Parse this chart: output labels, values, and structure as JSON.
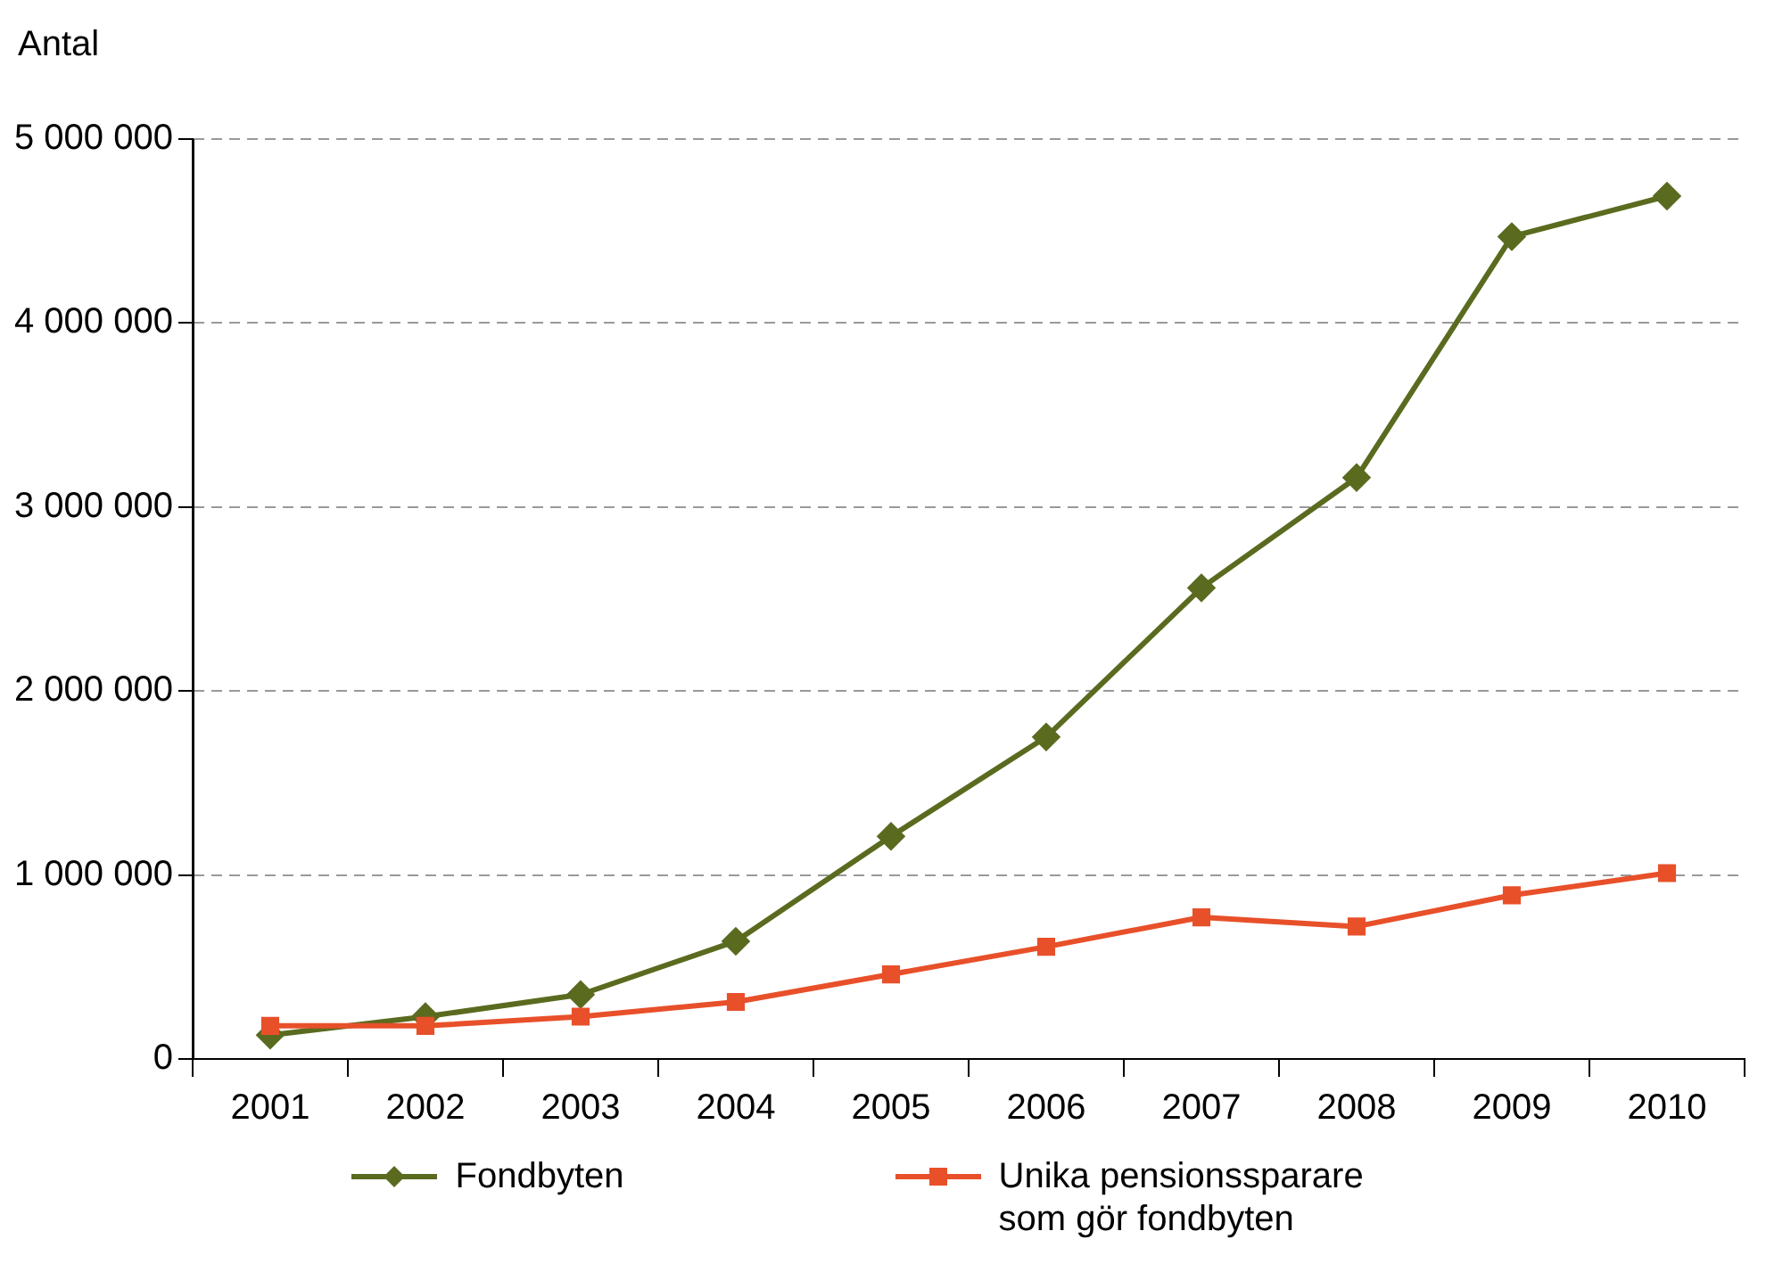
{
  "chart_data": {
    "type": "line",
    "ylabel": "Antal",
    "categories": [
      "2001",
      "2002",
      "2003",
      "2004",
      "2005",
      "2006",
      "2007",
      "2008",
      "2009",
      "2010"
    ],
    "series": [
      {
        "name": "Fondbyten",
        "color": "#5a6b1f",
        "marker": "diamond",
        "values": [
          130000,
          230000,
          350000,
          640000,
          1210000,
          1750000,
          2560000,
          3160000,
          4470000,
          4690000
        ]
      },
      {
        "name": "Unika pensionssparare som gör fondbyten",
        "color": "#e8502a",
        "marker": "square",
        "values": [
          180000,
          180000,
          230000,
          310000,
          460000,
          610000,
          770000,
          720000,
          890000,
          1010000
        ]
      }
    ],
    "ylim": [
      0,
      5000000
    ],
    "yticks": [
      {
        "value": 0,
        "label": "0"
      },
      {
        "value": 1000000,
        "label": "1 000 000"
      },
      {
        "value": 2000000,
        "label": "2 000 000"
      },
      {
        "value": 3000000,
        "label": "3 000 000"
      },
      {
        "value": 4000000,
        "label": "4 000 000"
      },
      {
        "value": 5000000,
        "label": "5 000 000"
      }
    ],
    "grid": "y",
    "legend": "bottom",
    "line_style": "solid"
  }
}
